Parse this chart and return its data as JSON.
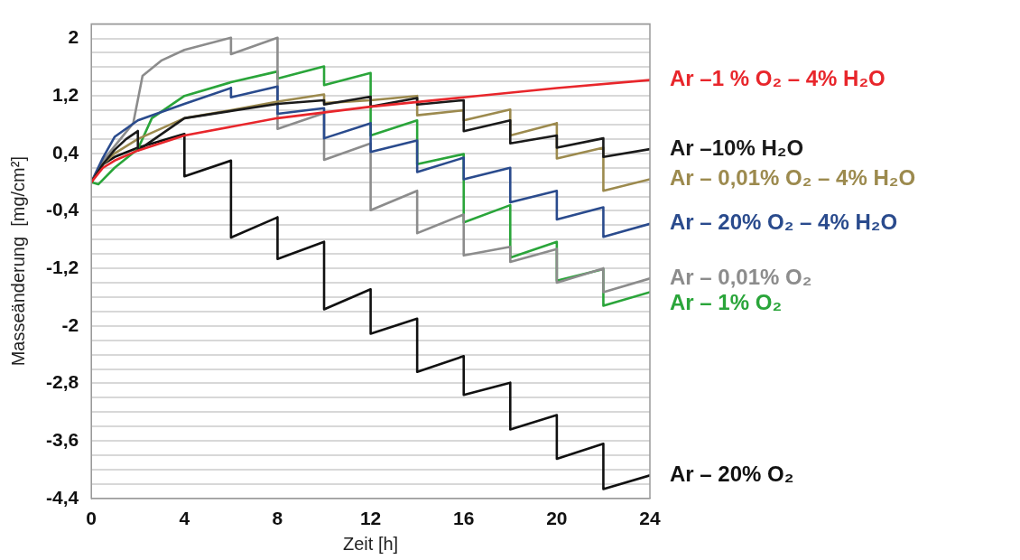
{
  "chart_data": {
    "type": "line",
    "xlabel": "Zeit [h]",
    "ylabel": "Masseänderung  [mg/cm²]",
    "xlim": [
      0,
      24
    ],
    "xticks": [
      0,
      4,
      8,
      12,
      16,
      20,
      24
    ],
    "ylim": [
      -4.4,
      2.2
    ],
    "yticks": [
      {
        "value": -4.4,
        "label": "-4,4"
      },
      {
        "value": -4.2,
        "label": null
      },
      {
        "value": -4,
        "label": null
      },
      {
        "value": -3.8,
        "label": null
      },
      {
        "value": -3.6,
        "label": "-3,6"
      },
      {
        "value": -3.4,
        "label": null
      },
      {
        "value": -3.2,
        "label": null
      },
      {
        "value": -3,
        "label": null
      },
      {
        "value": -2.8,
        "label": "-2,8"
      },
      {
        "value": -2.6,
        "label": null
      },
      {
        "value": -2.4,
        "label": null
      },
      {
        "value": -2.2,
        "label": null
      },
      {
        "value": -2,
        "label": "-2"
      },
      {
        "value": -1.8,
        "label": null
      },
      {
        "value": -1.6,
        "label": null
      },
      {
        "value": -1.4,
        "label": null
      },
      {
        "value": -1.2,
        "label": "-1,2"
      },
      {
        "value": -1,
        "label": null
      },
      {
        "value": -0.8,
        "label": null
      },
      {
        "value": -0.6,
        "label": null
      },
      {
        "value": -0.4,
        "label": "-0,4"
      },
      {
        "value": -0.2,
        "label": null
      },
      {
        "value": 0,
        "label": null
      },
      {
        "value": 0.2,
        "label": null
      },
      {
        "value": 0.4,
        "label": "0,4"
      },
      {
        "value": 0.6,
        "label": null
      },
      {
        "value": 0.8,
        "label": null
      },
      {
        "value": 1,
        "label": null
      },
      {
        "value": 1.2,
        "label": "1,2"
      },
      {
        "value": 1.4,
        "label": null
      },
      {
        "value": 1.6,
        "label": null
      },
      {
        "value": 1.8,
        "label": null
      },
      {
        "value": 2,
        "label": "2"
      },
      {
        "value": 2.2,
        "label": null
      }
    ],
    "grid": "y",
    "legend": "right",
    "marker": "none",
    "line_style": "solid",
    "series": [
      {
        "name": "Ar –1 % O₂ – 4% H₂O",
        "color": "#e8262b",
        "x": [
          0,
          0.5,
          1,
          2,
          4,
          8,
          12,
          16,
          20,
          24
        ],
        "values": [
          0,
          0.2,
          0.3,
          0.44,
          0.65,
          0.89,
          1.05,
          1.18,
          1.31,
          1.42
        ]
      },
      {
        "name": "Ar –10% H₂O",
        "color": "#1a1a1a",
        "x": [
          0,
          0.5,
          1,
          1.5,
          2,
          2,
          4,
          8,
          10,
          10,
          12,
          12,
          14,
          14,
          16,
          16,
          18,
          18,
          20,
          20,
          22,
          22,
          24
        ],
        "values": [
          0,
          0.25,
          0.45,
          0.6,
          0.71,
          0.44,
          0.89,
          1.09,
          1.14,
          1.08,
          1.19,
          1.05,
          1.17,
          1.08,
          1.14,
          0.71,
          0.86,
          0.54,
          0.65,
          0.48,
          0.61,
          0.35,
          0.46
        ]
      },
      {
        "name": "Ar – 0,01% O₂ – 4% H₂O",
        "color": "#9c8a4e",
        "x": [
          0,
          0.5,
          1,
          2,
          4,
          6,
          8,
          10,
          10,
          12,
          14,
          14,
          16,
          16,
          18,
          18,
          20,
          20,
          22,
          22,
          24
        ],
        "values": [
          0,
          0.25,
          0.4,
          0.6,
          0.89,
          1.0,
          1.12,
          1.22,
          1.1,
          1.14,
          1.2,
          0.93,
          1.0,
          0.86,
          1.01,
          0.65,
          0.82,
          0.33,
          0.48,
          -0.12,
          0.04
        ]
      },
      {
        "name": "Ar – 20% O₂ – 4% H₂O",
        "color": "#2a4b8d",
        "x": [
          0,
          0.5,
          1,
          2,
          4,
          6,
          6,
          8,
          8,
          10,
          10,
          12,
          12,
          14,
          14,
          16,
          16,
          18,
          18,
          20,
          20,
          22,
          22,
          24
        ],
        "values": [
          0,
          0.34,
          0.63,
          0.86,
          1.09,
          1.31,
          1.18,
          1.33,
          0.95,
          1.03,
          0.61,
          0.82,
          0.42,
          0.58,
          0.14,
          0.34,
          0.04,
          0.2,
          -0.28,
          -0.12,
          -0.52,
          -0.35,
          -0.76,
          -0.58
        ]
      },
      {
        "name": "Ar – 0,01% O₂",
        "color": "#8c8c8c",
        "x": [
          0,
          0.5,
          1,
          1.8,
          2.2,
          3,
          4,
          6,
          6,
          8,
          8,
          10,
          10,
          12,
          12,
          14,
          14,
          16,
          16,
          18,
          18,
          20,
          20,
          22,
          22,
          24
        ],
        "values": [
          0,
          0.3,
          0.5,
          0.82,
          1.48,
          1.69,
          1.84,
          2.01,
          1.78,
          2.01,
          0.74,
          0.96,
          0.31,
          0.54,
          -0.39,
          -0.12,
          -0.71,
          -0.45,
          -1.02,
          -0.9,
          -1.11,
          -0.93,
          -1.4,
          -1.2,
          -1.53,
          -1.34
        ]
      },
      {
        "name": "Ar – 1% O₂",
        "color": "#2aa53a",
        "x": [
          0,
          0.3,
          1,
          2,
          2.6,
          4,
          6,
          8,
          8,
          10,
          10,
          12,
          12,
          14,
          14,
          16,
          16,
          18,
          18,
          20,
          20,
          22,
          22,
          24
        ],
        "values": [
          0,
          -0.03,
          0.2,
          0.46,
          0.89,
          1.2,
          1.39,
          1.54,
          1.44,
          1.61,
          1.35,
          1.52,
          0.65,
          0.86,
          0.25,
          0.39,
          -0.56,
          -0.32,
          -1.05,
          -0.83,
          -1.37,
          -1.21,
          -1.72,
          -1.53
        ]
      },
      {
        "name": "Ar – 20% O₂",
        "color": "#111111",
        "x": [
          0,
          0.5,
          1,
          2,
          4,
          4,
          6,
          6,
          8,
          8,
          10,
          10,
          12,
          12,
          14,
          14,
          16,
          16,
          18,
          18,
          20,
          20,
          22,
          22,
          24
        ],
        "values": [
          0,
          0.25,
          0.35,
          0.48,
          0.67,
          0.08,
          0.3,
          -0.77,
          -0.49,
          -1.07,
          -0.83,
          -1.77,
          -1.49,
          -2.11,
          -1.9,
          -2.64,
          -2.42,
          -2.96,
          -2.79,
          -3.44,
          -3.24,
          -3.85,
          -3.64,
          -4.27,
          -4.08
        ]
      }
    ]
  }
}
